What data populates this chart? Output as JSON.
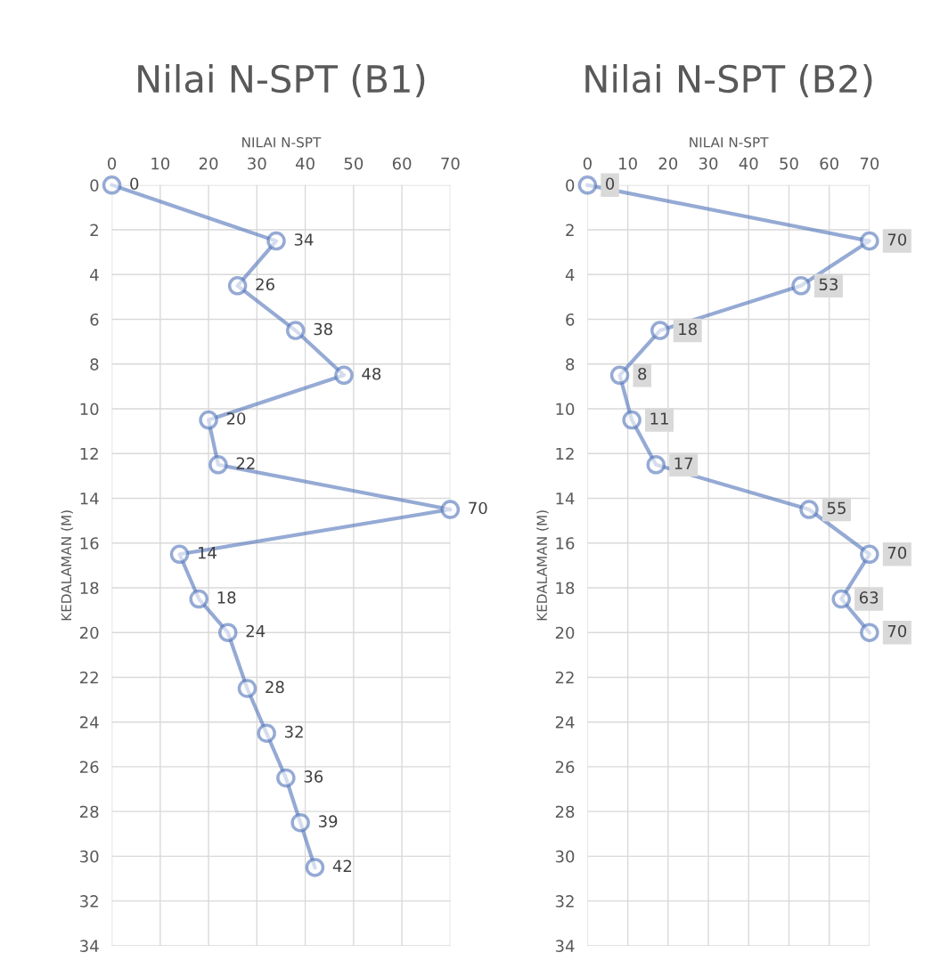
{
  "chart_data": [
    {
      "type": "line",
      "orientation": "horizontal",
      "title": "Nilai N-SPT (B1)",
      "xlabel": "NILAI N-SPT",
      "ylabel": "KEDALAMAN (M)",
      "series": [
        {
          "color": "#4f72b8",
          "x": [
            0,
            2.5,
            4.5,
            6.5,
            8.5,
            10.5,
            12.5,
            14.5,
            16.5,
            18.5,
            20,
            22.5,
            24.5,
            26.5,
            28.5,
            30.5
          ],
          "values": [
            0,
            34,
            26,
            38,
            48,
            20,
            22,
            70,
            14,
            18,
            24,
            28,
            32,
            36,
            39,
            42
          ]
        }
      ],
      "data_labels": true,
      "xlim": [
        0,
        70
      ],
      "xticks": [
        0,
        10,
        20,
        30,
        40,
        50,
        60,
        70
      ],
      "ylim": [
        34,
        0
      ],
      "yticks": [
        0,
        2,
        4,
        6,
        8,
        10,
        12,
        14,
        16,
        18,
        20,
        22,
        24,
        26,
        28,
        30,
        32,
        34
      ],
      "grid": true,
      "marker": "circle",
      "line_style": "solid"
    },
    {
      "type": "line",
      "orientation": "horizontal",
      "title": "Nilai N-SPT (B2)",
      "xlabel": "NILAI N-SPT",
      "ylabel": "KEDALAMAN (M)",
      "series": [
        {
          "color": "#4f72b8",
          "x": [
            0,
            2.5,
            4.5,
            6.5,
            8.5,
            10.5,
            12.5,
            14.5,
            16.5,
            18.5,
            20
          ],
          "values": [
            0,
            70,
            53,
            18,
            8,
            11,
            17,
            55,
            70,
            63,
            70
          ]
        }
      ],
      "data_labels": true,
      "xlim": [
        0,
        70
      ],
      "xticks": [
        0,
        10,
        20,
        30,
        40,
        50,
        60,
        70
      ],
      "ylim": [
        34,
        0
      ],
      "yticks": [
        0,
        2,
        4,
        6,
        8,
        10,
        12,
        14,
        16,
        18,
        20,
        22,
        24,
        26,
        28,
        30,
        32,
        34
      ],
      "grid": true,
      "marker": "circle",
      "line_style": "solid"
    }
  ]
}
